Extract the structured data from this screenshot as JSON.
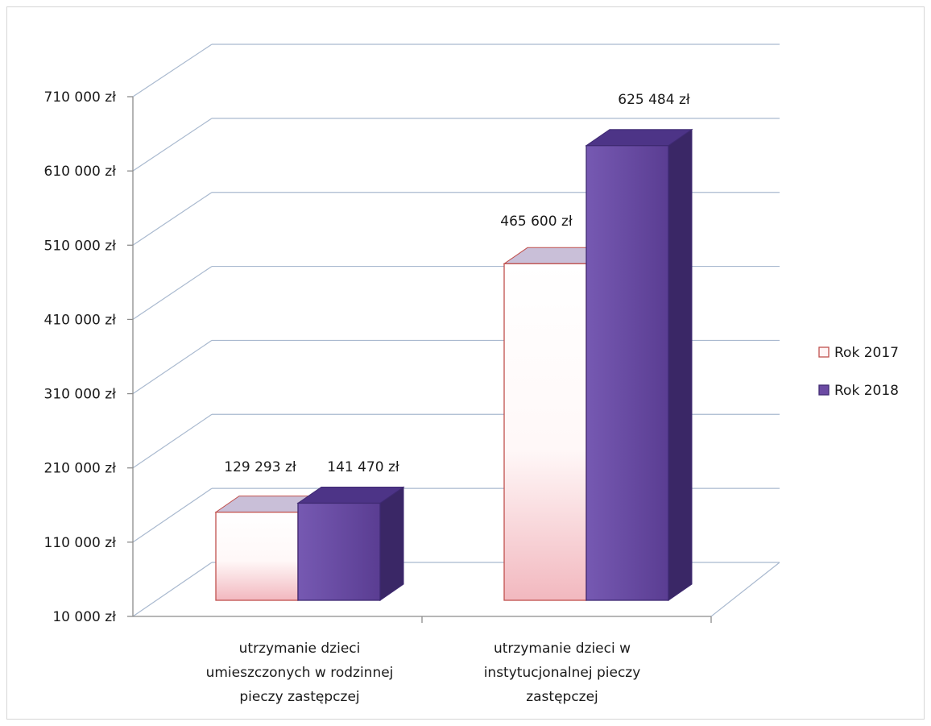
{
  "chart_data": {
    "type": "bar",
    "style": "3d-clustered-column",
    "categories": [
      [
        "utrzymanie dzieci",
        "umieszczonych w rodzinnej",
        "pieczy zastępczej"
      ],
      [
        "utrzymanie dzieci w",
        "instytucjonalnej pieczy",
        "zastępczej"
      ]
    ],
    "series": [
      {
        "name": "Rok 2017",
        "values": [
          129293,
          465600
        ],
        "labels": [
          "129 293 zł",
          "465 600 zł"
        ],
        "color": "#ffffff",
        "edge": "#c0504d"
      },
      {
        "name": "Rok 2018",
        "values": [
          141470,
          625484
        ],
        "labels": [
          "141 470 zł",
          "625 484 zł"
        ],
        "color": "#6b4aa3",
        "edge": "#3f2a72"
      }
    ],
    "yticks": [
      "10 000 zł",
      "110 000 zł",
      "210 000 zł",
      "310 000 zł",
      "410 000 zł",
      "510 000 zł",
      "610 000 zł",
      "710 000 zł"
    ],
    "ytick_values": [
      10000,
      110000,
      210000,
      310000,
      410000,
      510000,
      610000,
      710000
    ],
    "ylim": [
      10000,
      710000
    ],
    "grid": true,
    "legend_position": "right"
  }
}
